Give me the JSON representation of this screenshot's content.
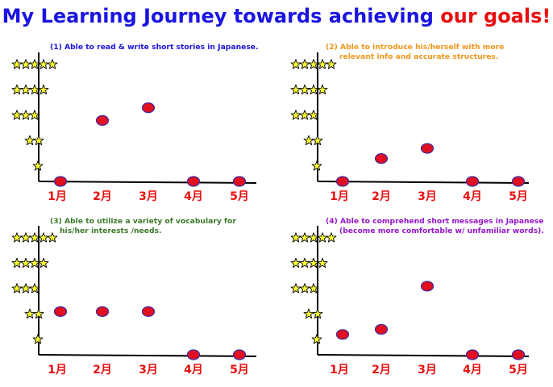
{
  "title": {
    "part1": "My Learning Journey towards achieving ",
    "part2": "our goals!",
    "color1": "#1a14e0",
    "color2": "#e80f0f"
  },
  "style": {
    "point_color": "#e01020",
    "point_stroke": "#3b2aa0",
    "star_color": "#ffff33",
    "tick_label_color": "#e80f0f"
  },
  "chart_data": [
    {
      "type": "scatter",
      "title_lines": [
        "(1) Able to read & write short stories in Japanese."
      ],
      "title_color": "#1a14e0",
      "categories": [
        "1月",
        "2月",
        "3月",
        "4月",
        "5月"
      ],
      "values": [
        0,
        2.4,
        2.9,
        0,
        0
      ],
      "ylim": [
        0,
        5
      ],
      "y_ticks": [
        1,
        2,
        3,
        4,
        5
      ],
      "y_tick_style": "stars"
    },
    {
      "type": "scatter",
      "title_lines": [
        "(2) Able to introduce his/herself with more",
        "relevant info and accurate structures."
      ],
      "title_color": "#f0961e",
      "categories": [
        "1月",
        "2月",
        "3月",
        "4月",
        "5月"
      ],
      "values": [
        0,
        0.9,
        1.3,
        0,
        0
      ],
      "ylim": [
        0,
        5
      ],
      "y_ticks": [
        1,
        2,
        3,
        4,
        5
      ],
      "y_tick_style": "stars"
    },
    {
      "type": "scatter",
      "title_lines": [
        "(3) Able to utilize a variety of vocabulary for",
        "his/her interests /needs."
      ],
      "title_color": "#3b7a2a",
      "categories": [
        "1月",
        "2月",
        "3月",
        "4月",
        "5月"
      ],
      "values": [
        1.7,
        1.7,
        1.7,
        0,
        0
      ],
      "ylim": [
        0,
        5
      ],
      "y_ticks": [
        1,
        2,
        3,
        4,
        5
      ],
      "y_tick_style": "stars"
    },
    {
      "type": "scatter",
      "title_lines": [
        "(4) Able to comprehend short messages in Japanese",
        "(become more comfortable w/ unfamiliar words)."
      ],
      "title_color": "#9418c8",
      "categories": [
        "1月",
        "2月",
        "3月",
        "4月",
        "5月"
      ],
      "values": [
        0.8,
        1.0,
        2.7,
        0,
        0
      ],
      "ylim": [
        0,
        5
      ],
      "y_ticks": [
        1,
        2,
        3,
        4,
        5
      ],
      "y_tick_style": "stars"
    }
  ]
}
